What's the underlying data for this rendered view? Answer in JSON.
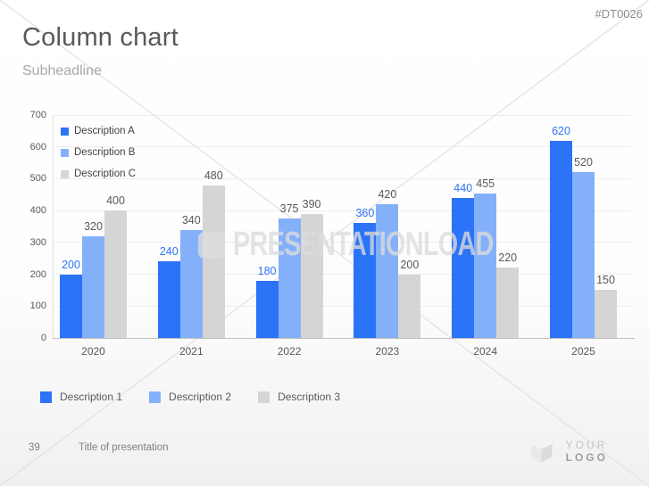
{
  "meta": {
    "product_code": "#DT0026"
  },
  "header": {
    "title": "Column chart",
    "subtitle": "Subheadline"
  },
  "chart_data": {
    "type": "bar",
    "title": "",
    "categories": [
      "2020",
      "2021",
      "2022",
      "2023",
      "2024",
      "2025"
    ],
    "series": [
      {
        "name": "Description A",
        "color": "#2b73f7",
        "label_color": "#2b73f7",
        "values": [
          200,
          240,
          180,
          360,
          440,
          620
        ]
      },
      {
        "name": "Description B",
        "color": "#84b0fa",
        "label_color": "#595959",
        "values": [
          320,
          340,
          375,
          420,
          455,
          520
        ]
      },
      {
        "name": "Description C",
        "color": "#d5d5d5",
        "label_color": "#595959",
        "values": [
          400,
          480,
          390,
          200,
          220,
          150
        ]
      }
    ],
    "xlabel": "",
    "ylabel": "",
    "ylim": [
      0,
      700
    ],
    "yticks": [
      0,
      100,
      200,
      300,
      400,
      500,
      600,
      700
    ],
    "grid": true,
    "legend_position": "top-left-inside"
  },
  "bottom_legend": [
    {
      "label": "Description 1",
      "color": "#2b73f7"
    },
    {
      "label": "Description 2",
      "color": "#84b0fa"
    },
    {
      "label": "Description 3",
      "color": "#d5d5d5"
    }
  ],
  "watermark": {
    "text": "PRESENTATIONLOAD"
  },
  "footer": {
    "page_number": "39",
    "presentation_title": "Title of presentation",
    "logo_text_light": "YOUR ",
    "logo_text_bold": "LOGO"
  }
}
